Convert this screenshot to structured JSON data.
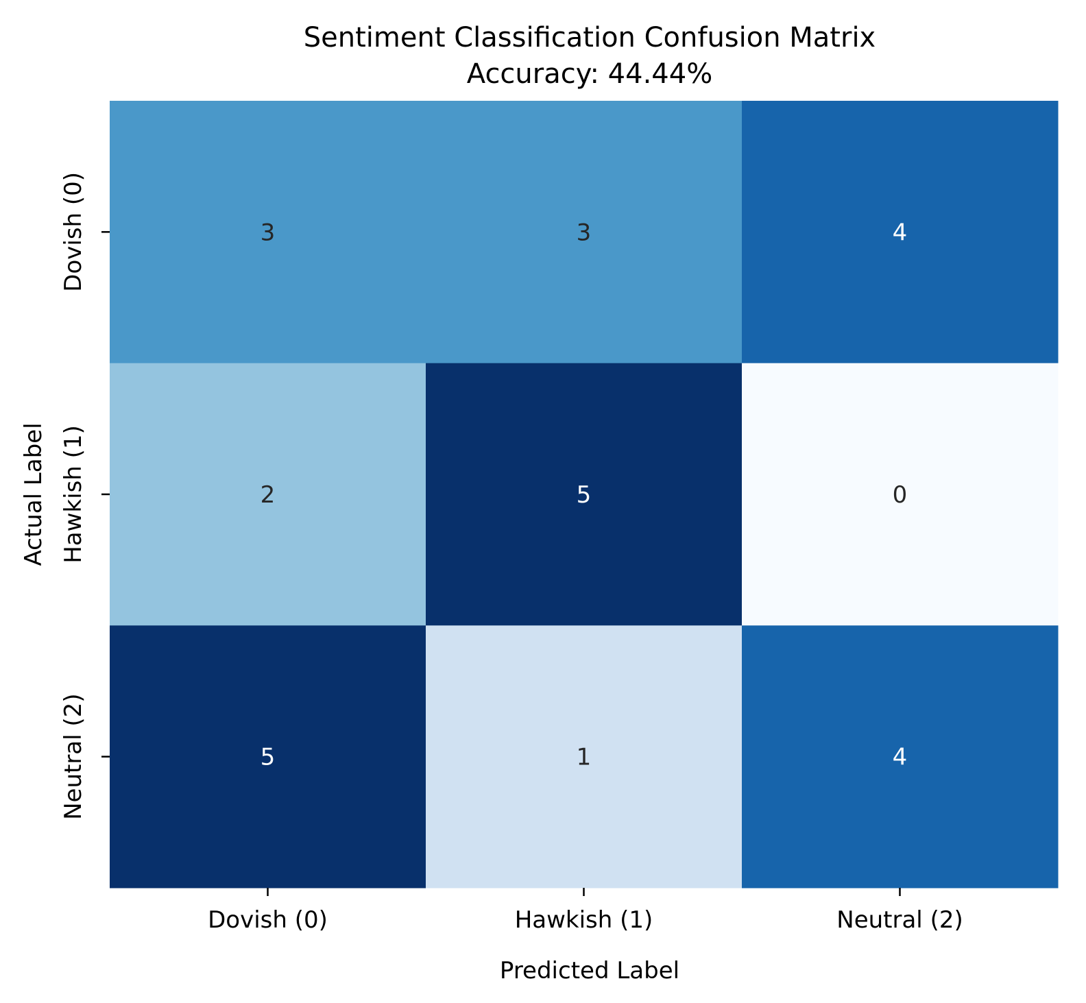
{
  "chart_data": {
    "type": "heatmap",
    "title": "Sentiment Classification Confusion Matrix",
    "subtitle": "Accuracy: 44.44%",
    "xlabel": "Predicted Label",
    "ylabel": "Actual Label",
    "x_categories": [
      "Dovish (0)",
      "Hawkish (1)",
      "Neutral (2)"
    ],
    "y_categories": [
      "Dovish (0)",
      "Hawkish (1)",
      "Neutral (2)"
    ],
    "values": [
      [
        3,
        3,
        4
      ],
      [
        2,
        5,
        0
      ],
      [
        5,
        1,
        4
      ]
    ],
    "value_range": [
      0,
      5
    ],
    "colormap": "Blues",
    "colormap_stops": [
      "#f7fbff",
      "#deebf7",
      "#c6dbef",
      "#9ecae1",
      "#6baed6",
      "#4292c6",
      "#2171b5",
      "#08519c",
      "#08306b"
    ],
    "annotation_dark_color": "#262626",
    "annotation_light_color": "#ffffff",
    "colorbar": false,
    "grid": false
  }
}
